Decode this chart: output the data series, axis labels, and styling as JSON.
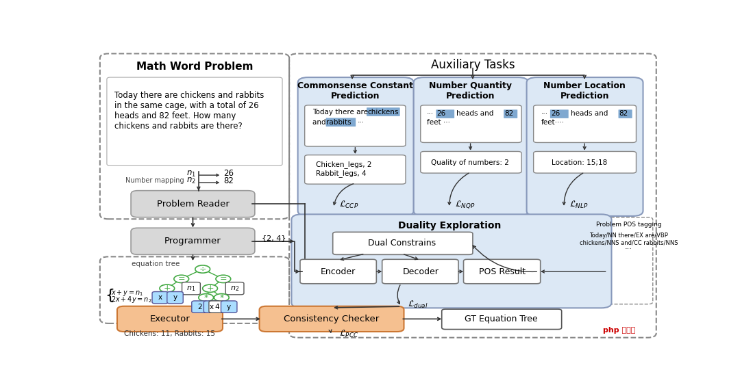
{
  "bg_color": "#ffffff",
  "math_problem_title": "Math Word Problem",
  "math_problem_text": "Today there are chickens and rabbits\nin the same cage, with a total of 26\nheads and 82 feet. How many\nchickens and rabbits are there?",
  "aux_tasks_title": "Auxiliary Tasks",
  "ccp_title": "Commonsense Constant\nPrediction",
  "nqp_title": "Number Quantity\nPrediction",
  "nlp_title": "Number Location\nPrediction",
  "duality_title": "Duality Exploration",
  "problem_reader_label": "Problem Reader",
  "programmer_label": "Programmer",
  "executor_label": "Executor",
  "consistency_checker_label": "Consistency Checker",
  "gt_label": "GT Equation Tree",
  "pos_tagging_label": "Problem POS tagging",
  "pos_tagging_text1": "Today/NN there/EX are/VBP",
  "pos_tagging_text2": "chickens/NNS and/CC rabbits/NNS",
  "dual_constrains_label": "Dual Constrains",
  "encoder_label": "Encoder",
  "decoder_label": "Decoder",
  "pos_result_label": "POS Result",
  "chickens_result": "Chickens: 11, Rabbits: 15",
  "number_mapping_label": "Number mapping",
  "box_color_blue": "#dce8f5",
  "box_border_blue": "#8899bb",
  "box_color_orange": "#f5c090",
  "box_border_orange": "#cc7733",
  "box_color_gray": "#d8d8d8",
  "box_border_gray": "#999999",
  "highlight_color": "#7fa8d0",
  "tree_color": "#44aa44"
}
